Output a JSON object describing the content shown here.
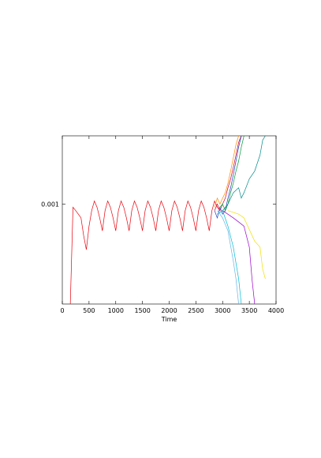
{
  "chart_data": {
    "type": "line",
    "xlabel": "Time",
    "log_y": true,
    "xlim": [
      0,
      4000
    ],
    "xticks": [
      0,
      500,
      1000,
      1500,
      2000,
      2500,
      3000,
      3500,
      4000
    ],
    "ylim": [
      0.0002,
      0.003
    ],
    "yticks": [
      0.001
    ],
    "series": [
      {
        "color": "#e8000b",
        "x": [
          150,
          200,
          250,
          300,
          350,
          400,
          450,
          500,
          550,
          600,
          650,
          700,
          750,
          800,
          850,
          900,
          950,
          1000,
          1050,
          1100,
          1150,
          1200,
          1250,
          1300,
          1350,
          1400,
          1450,
          1500,
          1550,
          1600,
          1650,
          1700,
          1750,
          1800,
          1850,
          1900,
          1950,
          2000,
          2050,
          2100,
          2150,
          2200,
          2250,
          2300,
          2350,
          2400,
          2450,
          2500,
          2550,
          2600,
          2650,
          2700,
          2750,
          2800,
          2850,
          2900,
          2950
        ],
        "values": [
          0.0002,
          0.00095,
          0.0009,
          0.00085,
          0.0008,
          0.0006,
          0.00048,
          0.0007,
          0.0009,
          0.00105,
          0.00095,
          0.0008,
          0.00065,
          0.0009,
          0.00105,
          0.00095,
          0.0008,
          0.00065,
          0.0009,
          0.00105,
          0.00095,
          0.0008,
          0.00065,
          0.0009,
          0.00105,
          0.00095,
          0.0008,
          0.00065,
          0.0009,
          0.00105,
          0.00095,
          0.0008,
          0.00065,
          0.0009,
          0.00105,
          0.00095,
          0.0008,
          0.00065,
          0.0009,
          0.00105,
          0.00095,
          0.0008,
          0.00065,
          0.0009,
          0.00105,
          0.00095,
          0.0008,
          0.00065,
          0.0009,
          0.00105,
          0.00095,
          0.0008,
          0.00065,
          0.0009,
          0.00105,
          0.00095,
          0.0009
        ]
      },
      {
        "color": "#ff8c00",
        "x": [
          2850,
          2900,
          2950,
          3000,
          3050,
          3100,
          3150,
          3200,
          3250,
          3300
        ],
        "values": [
          0.00095,
          0.0011,
          0.001,
          0.0011,
          0.0012,
          0.0014,
          0.0017,
          0.0021,
          0.0026,
          0.003
        ]
      },
      {
        "color": "#cc0033",
        "x": [
          2850,
          2900,
          2950,
          3000,
          3050,
          3100,
          3150,
          3200,
          3250,
          3300,
          3350
        ],
        "values": [
          0.0009,
          0.001,
          0.0009,
          0.001,
          0.0011,
          0.0013,
          0.0015,
          0.0018,
          0.0022,
          0.0027,
          0.003
        ]
      },
      {
        "color": "#1f3fbf",
        "x": [
          2850,
          2900,
          2950,
          3000,
          3050,
          3100,
          3150,
          3200,
          3250,
          3300,
          3350
        ],
        "values": [
          0.0009,
          0.0008,
          0.00095,
          0.00085,
          0.0009,
          0.0011,
          0.0013,
          0.0016,
          0.002,
          0.0025,
          0.003
        ]
      },
      {
        "color": "#009933",
        "x": [
          2950,
          3000,
          3050,
          3100,
          3150,
          3200,
          3250,
          3300,
          3350,
          3400
        ],
        "values": [
          0.00095,
          0.001,
          0.0009,
          0.001,
          0.0012,
          0.0014,
          0.0017,
          0.002,
          0.0025,
          0.003
        ]
      },
      {
        "color": "#008b8b",
        "x": [
          2900,
          3000,
          3100,
          3200,
          3300,
          3350,
          3400,
          3500,
          3600,
          3700,
          3750,
          3800
        ],
        "values": [
          0.00085,
          0.0009,
          0.001,
          0.0012,
          0.0013,
          0.0011,
          0.0012,
          0.0015,
          0.0017,
          0.0022,
          0.0028,
          0.003
        ]
      },
      {
        "color": "#66b3e6",
        "x": [
          2900,
          3000,
          3100,
          3200,
          3250,
          3300
        ],
        "values": [
          0.0009,
          0.0008,
          0.00065,
          0.0004,
          0.0003,
          0.0002
        ]
      },
      {
        "color": "#00bcd4",
        "x": [
          2900,
          3000,
          3100,
          3200,
          3300,
          3350
        ],
        "values": [
          0.00085,
          0.0009,
          0.0007,
          0.0005,
          0.0003,
          0.0002
        ]
      },
      {
        "color": "#9900cc",
        "x": [
          3000,
          3200,
          3300,
          3400,
          3500,
          3550,
          3600
        ],
        "values": [
          0.0009,
          0.0008,
          0.00075,
          0.0007,
          0.0005,
          0.0003,
          0.0002
        ]
      },
      {
        "color": "#f0e000",
        "x": [
          3100,
          3300,
          3400,
          3600,
          3700,
          3750,
          3800
        ],
        "values": [
          0.0009,
          0.00085,
          0.0008,
          0.00055,
          0.0005,
          0.00035,
          0.0003
        ]
      }
    ]
  }
}
